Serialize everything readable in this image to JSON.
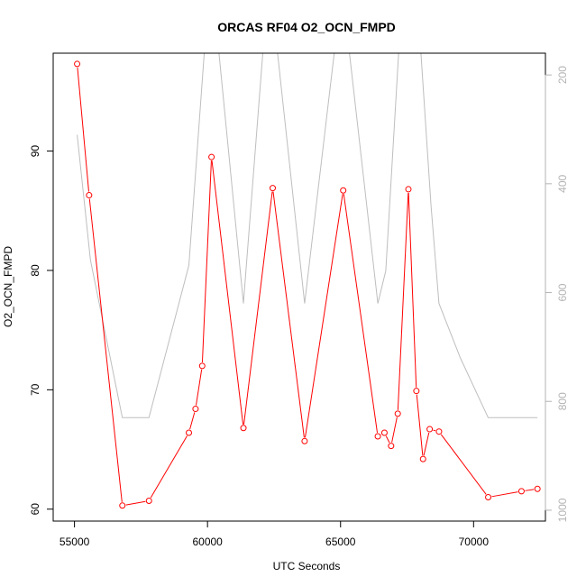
{
  "chart_data": {
    "type": "line",
    "title": "ORCAS RF04 O2_OCN_FMPD",
    "xlabel": "UTC Seconds",
    "ylabel": "O2_OCN_FMPD",
    "xlim": [
      54200,
      72700
    ],
    "ylim": [
      59.0,
      98.2
    ],
    "x_ticks": [
      55000,
      60000,
      65000,
      70000
    ],
    "y_ticks": [
      60,
      70,
      80,
      90
    ],
    "y2_reversed": true,
    "y2lim": [
      1020,
      160
    ],
    "y2_ticks": [
      200,
      400,
      600,
      800,
      1000
    ],
    "grid": false,
    "colors": {
      "primary": "#ff0000",
      "secondary": "#bebebe",
      "secondary_ticks": "#b3b3b3"
    },
    "series": [
      {
        "role": "primary",
        "marker": "open-circle",
        "x": [
          55100,
          55550,
          56800,
          57800,
          59300,
          59550,
          59800,
          60150,
          61350,
          62450,
          63650,
          65100,
          66400,
          66650,
          66900,
          67150,
          67550,
          67850,
          68100,
          68350,
          68700,
          70550,
          71800,
          72400
        ],
        "y": [
          97.3,
          86.3,
          60.3,
          60.7,
          66.4,
          68.4,
          72.0,
          89.5,
          66.8,
          86.9,
          65.7,
          86.7,
          66.1,
          66.4,
          65.3,
          68.0,
          86.8,
          69.9,
          64.2,
          66.7,
          66.5,
          61.0,
          61.5,
          61.7
        ]
      },
      {
        "role": "secondary",
        "x": [
          55100,
          55600,
          56800,
          57800,
          59300,
          59900,
          60400,
          61350,
          62100,
          62600,
          63650,
          64800,
          65300,
          66400,
          66700,
          67200,
          67650,
          68000,
          68400,
          68700,
          69500,
          70550,
          71800,
          72400
        ],
        "y": [
          310,
          540,
          830,
          830,
          550,
          145,
          145,
          620,
          145,
          145,
          620,
          145,
          145,
          620,
          560,
          145,
          145,
          145,
          440,
          620,
          720,
          830,
          830,
          830
        ]
      }
    ]
  }
}
